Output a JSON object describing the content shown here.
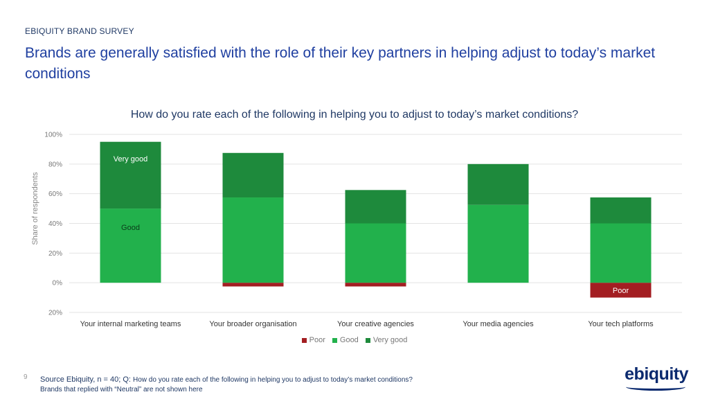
{
  "header": {
    "eyebrow": "EBIQUITY BRAND SURVEY",
    "title": "Brands are generally satisfied with the role of their key partners in helping adjust to today’s market conditions"
  },
  "chart_data": {
    "type": "bar",
    "stacked": true,
    "title": "How do you rate each of the following in helping you to adjust to today’s market conditions?",
    "xlabel": "",
    "ylabel": "Share of respondents",
    "ylim": [
      -20,
      100
    ],
    "ytick_labels": [
      "100%",
      "80%",
      "60%",
      "40%",
      "20%",
      "0%",
      "20%"
    ],
    "yticks": [
      100,
      80,
      60,
      40,
      20,
      0,
      -20
    ],
    "grid": true,
    "legend_position": "bottom",
    "categories": [
      "Your internal marketing teams",
      "Your broader organisation",
      "Your creative agencies",
      "Your media agencies",
      "Your tech platforms"
    ],
    "series": [
      {
        "name": "Poor",
        "color": "#a31e22",
        "values": [
          0,
          -2.5,
          -2.5,
          0,
          -10
        ]
      },
      {
        "name": "Good",
        "color": "#22b14c",
        "values": [
          50,
          57.5,
          40,
          52.5,
          40
        ]
      },
      {
        "name": "Very good",
        "color": "#1e8a3c",
        "values": [
          45,
          30,
          22.5,
          27.5,
          17.5
        ]
      }
    ],
    "annotations": [
      {
        "text": "Very good",
        "series": "Very good",
        "category_index": 0
      },
      {
        "text": "Good",
        "series": "Good",
        "category_index": 0
      },
      {
        "text": "Poor",
        "series": "Poor",
        "category_index": 4
      }
    ]
  },
  "footer": {
    "page_number": "9",
    "source_lead": "Source Ebiquity, n = 40; Q: ",
    "source_question": "How do you rate each of the following in helping you to adjust to today’s market conditions?",
    "note": "Brands that replied with “Neutral” are not shown here",
    "logo_text": "ebiquity"
  }
}
